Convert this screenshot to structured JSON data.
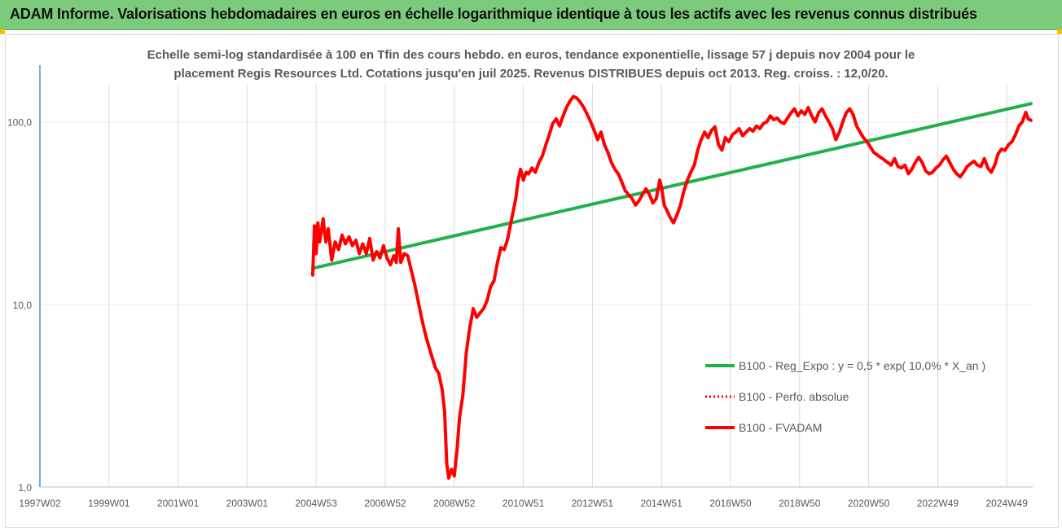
{
  "header": {
    "title": "ADAM Informe. Valorisations hebdomadaires en euros en échelle logarithmique identique à tous les actifs avec les revenus connus distribués"
  },
  "chart_data": {
    "type": "line",
    "title_lines": [
      "Echelle semi-log standardisée à 100 en Tfin des cours hebdo. en euros, tendance exponentielle, lissage 57 j depuis nov 2004 pour le",
      "placement Regis Resources Ltd. Cotations jusqu'en juil 2025. Revenus DISTRIBUES depuis oct 2013. Reg. croiss. : 12,0/20."
    ],
    "y_scale": "log",
    "ylim": [
      1,
      160
    ],
    "y_ticks": [
      {
        "value": 1,
        "label": "1,0"
      },
      {
        "value": 10,
        "label": "10,0"
      },
      {
        "value": 100,
        "label": "100,0"
      }
    ],
    "xlim": [
      1997.0,
      2025.75
    ],
    "x_ticks": [
      {
        "value": 1997.0,
        "label": "1997W02"
      },
      {
        "value": 1999.0,
        "label": "1999W01"
      },
      {
        "value": 2001.0,
        "label": "2001W01"
      },
      {
        "value": 2003.0,
        "label": "2003W01"
      },
      {
        "value": 2005.0,
        "label": "2004W53"
      },
      {
        "value": 2007.0,
        "label": "2006W52"
      },
      {
        "value": 2009.0,
        "label": "2008W52"
      },
      {
        "value": 2011.0,
        "label": "2010W51"
      },
      {
        "value": 2013.0,
        "label": "2012W51"
      },
      {
        "value": 2015.0,
        "label": "2014W51"
      },
      {
        "value": 2017.0,
        "label": "2016W50"
      },
      {
        "value": 2019.0,
        "label": "2018W50"
      },
      {
        "value": 2021.0,
        "label": "2020W50"
      },
      {
        "value": 2023.0,
        "label": "2022W49"
      },
      {
        "value": 2025.0,
        "label": "2024W49"
      }
    ],
    "grid": "vertical",
    "legend_position": "bottom-right",
    "series": [
      {
        "name": "B100 - Reg_Expo : y = 0,5 * exp( 10,0% *  X_an )",
        "color": "#22b04b",
        "style": "solid",
        "points": [
          [
            2004.9,
            15.8
          ],
          [
            2025.7,
            126
          ]
        ]
      },
      {
        "name": "B100 - Perfo. absolue",
        "color": "#ff0000",
        "style": "dotted",
        "points": []
      },
      {
        "name": "B100 - FVADAM",
        "color": "#ff0000",
        "style": "solid",
        "points": [
          [
            2004.9,
            14.5
          ],
          [
            2004.95,
            27.0
          ],
          [
            2005.0,
            19.0
          ],
          [
            2005.05,
            28.0
          ],
          [
            2005.1,
            22.0
          ],
          [
            2005.15,
            25.0
          ],
          [
            2005.2,
            29.5
          ],
          [
            2005.28,
            22.0
          ],
          [
            2005.35,
            26.0
          ],
          [
            2005.45,
            17.5
          ],
          [
            2005.55,
            22.0
          ],
          [
            2005.65,
            20.0
          ],
          [
            2005.75,
            24.0
          ],
          [
            2005.85,
            21.5
          ],
          [
            2005.95,
            23.5
          ],
          [
            2006.05,
            21.0
          ],
          [
            2006.15,
            22.5
          ],
          [
            2006.25,
            19.0
          ],
          [
            2006.35,
            21.5
          ],
          [
            2006.45,
            19.0
          ],
          [
            2006.55,
            23.0
          ],
          [
            2006.65,
            17.5
          ],
          [
            2006.75,
            19.5
          ],
          [
            2006.85,
            18.0
          ],
          [
            2006.95,
            21.0
          ],
          [
            2007.05,
            18.0
          ],
          [
            2007.15,
            16.5
          ],
          [
            2007.25,
            18.5
          ],
          [
            2007.32,
            17.0
          ],
          [
            2007.38,
            26.0
          ],
          [
            2007.45,
            17.0
          ],
          [
            2007.55,
            19.0
          ],
          [
            2007.65,
            18.5
          ],
          [
            2007.75,
            15.5
          ],
          [
            2007.85,
            13.0
          ],
          [
            2007.95,
            10.5
          ],
          [
            2008.05,
            8.5
          ],
          [
            2008.15,
            7.0
          ],
          [
            2008.25,
            6.0
          ],
          [
            2008.35,
            5.2
          ],
          [
            2008.45,
            4.5
          ],
          [
            2008.55,
            4.2
          ],
          [
            2008.65,
            3.4
          ],
          [
            2008.72,
            2.6
          ],
          [
            2008.78,
            1.35
          ],
          [
            2008.84,
            1.12
          ],
          [
            2008.92,
            1.25
          ],
          [
            2009.0,
            1.15
          ],
          [
            2009.08,
            1.6
          ],
          [
            2009.15,
            2.4
          ],
          [
            2009.25,
            3.2
          ],
          [
            2009.35,
            5.5
          ],
          [
            2009.45,
            7.5
          ],
          [
            2009.55,
            9.5
          ],
          [
            2009.65,
            8.5
          ],
          [
            2009.75,
            9.0
          ],
          [
            2009.85,
            9.5
          ],
          [
            2009.95,
            10.5
          ],
          [
            2010.05,
            12.5
          ],
          [
            2010.15,
            13.5
          ],
          [
            2010.25,
            17.0
          ],
          [
            2010.35,
            20.5
          ],
          [
            2010.45,
            20.0
          ],
          [
            2010.55,
            23.0
          ],
          [
            2010.62,
            27.0
          ],
          [
            2010.7,
            32.0
          ],
          [
            2010.78,
            38.0
          ],
          [
            2010.85,
            48.0
          ],
          [
            2010.92,
            55.0
          ],
          [
            2011.0,
            48.0
          ],
          [
            2011.08,
            53.0
          ],
          [
            2011.15,
            52.0
          ],
          [
            2011.25,
            56.0
          ],
          [
            2011.35,
            53.0
          ],
          [
            2011.45,
            60.0
          ],
          [
            2011.55,
            65.0
          ],
          [
            2011.65,
            75.0
          ],
          [
            2011.75,
            85.0
          ],
          [
            2011.85,
            98.0
          ],
          [
            2011.95,
            104.0
          ],
          [
            2012.05,
            95.0
          ],
          [
            2012.15,
            108.0
          ],
          [
            2012.25,
            120.0
          ],
          [
            2012.35,
            130.0
          ],
          [
            2012.45,
            138.0
          ],
          [
            2012.55,
            135.0
          ],
          [
            2012.65,
            128.0
          ],
          [
            2012.75,
            120.0
          ],
          [
            2012.85,
            110.0
          ],
          [
            2012.95,
            100.0
          ],
          [
            2013.05,
            90.0
          ],
          [
            2013.15,
            80.0
          ],
          [
            2013.25,
            88.0
          ],
          [
            2013.35,
            75.0
          ],
          [
            2013.45,
            68.0
          ],
          [
            2013.55,
            60.0
          ],
          [
            2013.65,
            55.0
          ],
          [
            2013.75,
            52.0
          ],
          [
            2013.85,
            47.0
          ],
          [
            2013.95,
            42.0
          ],
          [
            2014.05,
            40.0
          ],
          [
            2014.15,
            38.0
          ],
          [
            2014.25,
            35.0
          ],
          [
            2014.35,
            37.0
          ],
          [
            2014.45,
            40.0
          ],
          [
            2014.55,
            43.0
          ],
          [
            2014.65,
            40.0
          ],
          [
            2014.75,
            36.0
          ],
          [
            2014.85,
            38.0
          ],
          [
            2014.95,
            48.0
          ],
          [
            2015.0,
            44.0
          ],
          [
            2015.08,
            35.0
          ],
          [
            2015.15,
            33.0
          ],
          [
            2015.25,
            30.0
          ],
          [
            2015.35,
            28.0
          ],
          [
            2015.45,
            31.0
          ],
          [
            2015.55,
            35.0
          ],
          [
            2015.65,
            42.0
          ],
          [
            2015.75,
            48.0
          ],
          [
            2015.85,
            53.0
          ],
          [
            2015.95,
            58.0
          ],
          [
            2016.05,
            70.0
          ],
          [
            2016.15,
            80.0
          ],
          [
            2016.25,
            88.0
          ],
          [
            2016.35,
            82.0
          ],
          [
            2016.45,
            90.0
          ],
          [
            2016.55,
            94.0
          ],
          [
            2016.65,
            75.0
          ],
          [
            2016.75,
            70.0
          ],
          [
            2016.85,
            82.0
          ],
          [
            2016.95,
            78.0
          ],
          [
            2017.05,
            85.0
          ],
          [
            2017.15,
            88.0
          ],
          [
            2017.25,
            92.0
          ],
          [
            2017.35,
            84.0
          ],
          [
            2017.45,
            88.0
          ],
          [
            2017.55,
            92.0
          ],
          [
            2017.65,
            89.0
          ],
          [
            2017.75,
            95.0
          ],
          [
            2017.85,
            92.0
          ],
          [
            2017.95,
            98.0
          ],
          [
            2018.05,
            100.0
          ],
          [
            2018.15,
            108.0
          ],
          [
            2018.25,
            103.0
          ],
          [
            2018.35,
            105.0
          ],
          [
            2018.45,
            100.0
          ],
          [
            2018.55,
            98.0
          ],
          [
            2018.65,
            105.0
          ],
          [
            2018.75,
            112.0
          ],
          [
            2018.85,
            118.0
          ],
          [
            2018.95,
            108.0
          ],
          [
            2019.05,
            115.0
          ],
          [
            2019.15,
            110.0
          ],
          [
            2019.25,
            120.0
          ],
          [
            2019.35,
            108.0
          ],
          [
            2019.45,
            100.0
          ],
          [
            2019.55,
            112.0
          ],
          [
            2019.65,
            118.0
          ],
          [
            2019.75,
            108.0
          ],
          [
            2019.85,
            100.0
          ],
          [
            2019.95,
            92.0
          ],
          [
            2020.05,
            80.0
          ],
          [
            2020.15,
            88.0
          ],
          [
            2020.25,
            100.0
          ],
          [
            2020.35,
            112.0
          ],
          [
            2020.45,
            118.0
          ],
          [
            2020.55,
            110.0
          ],
          [
            2020.65,
            95.0
          ],
          [
            2020.75,
            88.0
          ],
          [
            2020.85,
            82.0
          ],
          [
            2020.95,
            78.0
          ],
          [
            2021.05,
            73.0
          ],
          [
            2021.15,
            68.0
          ],
          [
            2021.25,
            66.0
          ],
          [
            2021.35,
            64.0
          ],
          [
            2021.45,
            62.0
          ],
          [
            2021.55,
            60.0
          ],
          [
            2021.65,
            58.0
          ],
          [
            2021.75,
            63.0
          ],
          [
            2021.85,
            57.0
          ],
          [
            2021.95,
            56.0
          ],
          [
            2022.05,
            58.0
          ],
          [
            2022.15,
            52.0
          ],
          [
            2022.25,
            55.0
          ],
          [
            2022.35,
            60.0
          ],
          [
            2022.45,
            64.0
          ],
          [
            2022.55,
            60.0
          ],
          [
            2022.65,
            54.0
          ],
          [
            2022.75,
            52.0
          ],
          [
            2022.85,
            53.0
          ],
          [
            2022.95,
            56.0
          ],
          [
            2023.05,
            58.0
          ],
          [
            2023.15,
            62.0
          ],
          [
            2023.25,
            65.0
          ],
          [
            2023.35,
            60.0
          ],
          [
            2023.45,
            55.0
          ],
          [
            2023.55,
            52.0
          ],
          [
            2023.65,
            50.0
          ],
          [
            2023.75,
            53.0
          ],
          [
            2023.85,
            57.0
          ],
          [
            2023.95,
            59.0
          ],
          [
            2024.05,
            61.0
          ],
          [
            2024.15,
            58.0
          ],
          [
            2024.25,
            57.0
          ],
          [
            2024.35,
            63.0
          ],
          [
            2024.45,
            56.0
          ],
          [
            2024.55,
            53.0
          ],
          [
            2024.65,
            58.0
          ],
          [
            2024.75,
            67.0
          ],
          [
            2024.85,
            71.0
          ],
          [
            2024.95,
            70.0
          ],
          [
            2025.05,
            75.0
          ],
          [
            2025.15,
            78.0
          ],
          [
            2025.25,
            85.0
          ],
          [
            2025.35,
            95.0
          ],
          [
            2025.45,
            100.0
          ],
          [
            2025.55,
            113.0
          ],
          [
            2025.62,
            104.0
          ],
          [
            2025.7,
            102.0
          ]
        ]
      }
    ]
  }
}
